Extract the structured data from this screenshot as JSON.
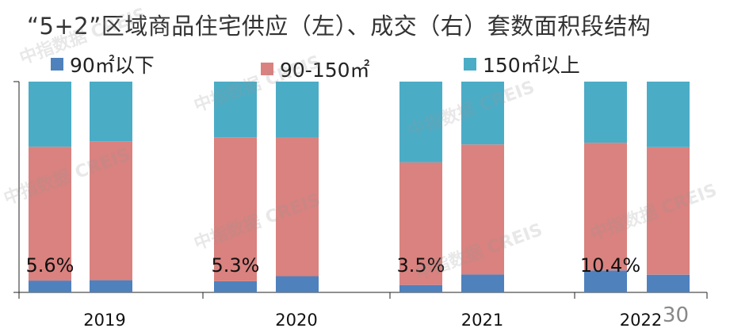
{
  "chart_data": {
    "type": "bar",
    "stacked": true,
    "percent": true,
    "title": "“5+2”区域商品住宅供应（左）、成交（右）套数面积段结构",
    "categories": [
      "2019",
      "2020",
      "2021",
      "2022"
    ],
    "bars_per_category": [
      "供应（左）",
      "成交（右）"
    ],
    "colors": {
      "small": "#4f81bd",
      "mid": "#d9827f",
      "large": "#4bacc6"
    },
    "series": [
      {
        "name": "90㎡以下",
        "key": "small",
        "values": [
          [
            5.6,
            5.8
          ],
          [
            5.3,
            7.7
          ],
          [
            3.5,
            8.5
          ],
          [
            10.4,
            8.4
          ]
        ]
      },
      {
        "name": "90-150㎡",
        "key": "mid",
        "values": [
          [
            63.5,
            65.9
          ],
          [
            68.3,
            66.0
          ],
          [
            58.2,
            61.7
          ],
          [
            60.6,
            60.5
          ]
        ]
      },
      {
        "name": "150㎡以上",
        "key": "large",
        "values": [
          [
            30.9,
            28.3
          ],
          [
            26.4,
            26.3
          ],
          [
            38.3,
            29.8
          ],
          [
            29.0,
            31.1
          ]
        ]
      }
    ],
    "data_labels": [
      "5.6%",
      "5.3%",
      "3.5%",
      "10.4%"
    ],
    "ylim": [
      0,
      100
    ],
    "grid": false,
    "legend": "top"
  },
  "watermark": "中指数据 CREIS",
  "page_number": "30"
}
